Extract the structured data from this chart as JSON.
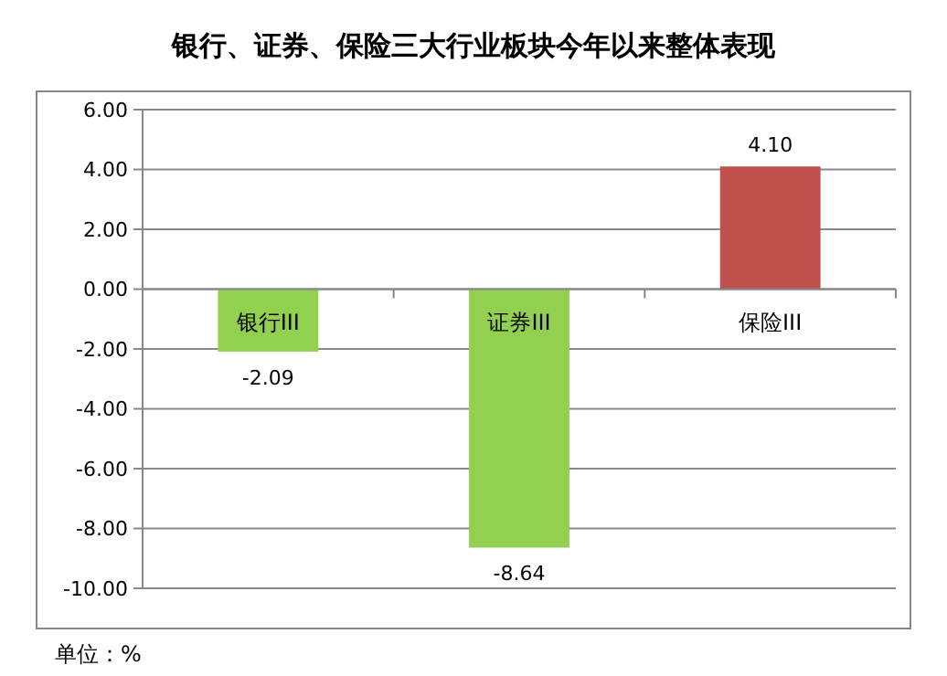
{
  "chart_data": {
    "type": "bar",
    "title": "银行、证券、保险三大行业板块今年以来整体表现",
    "categories": [
      "银行III",
      "证券III",
      "保险III"
    ],
    "values": [
      -2.09,
      -8.64,
      4.1
    ],
    "colors": [
      "#92d050",
      "#92d050",
      "#c0504d"
    ],
    "value_labels": [
      "-2.09",
      "-8.64",
      "4.10"
    ],
    "ylim": [
      -10,
      6
    ],
    "yticks": [
      {
        "value": -10,
        "label": "-10.00"
      },
      {
        "value": -8,
        "label": "-8.00"
      },
      {
        "value": -6,
        "label": "-6.00"
      },
      {
        "value": -4,
        "label": "-4.00"
      },
      {
        "value": -2,
        "label": "-2.00"
      },
      {
        "value": 0,
        "label": "0.00"
      },
      {
        "value": 2,
        "label": "2.00"
      },
      {
        "value": 4,
        "label": "4.00"
      },
      {
        "value": 6,
        "label": "6.00"
      }
    ],
    "grid": "y",
    "annotations": [
      "单位：%"
    ]
  }
}
